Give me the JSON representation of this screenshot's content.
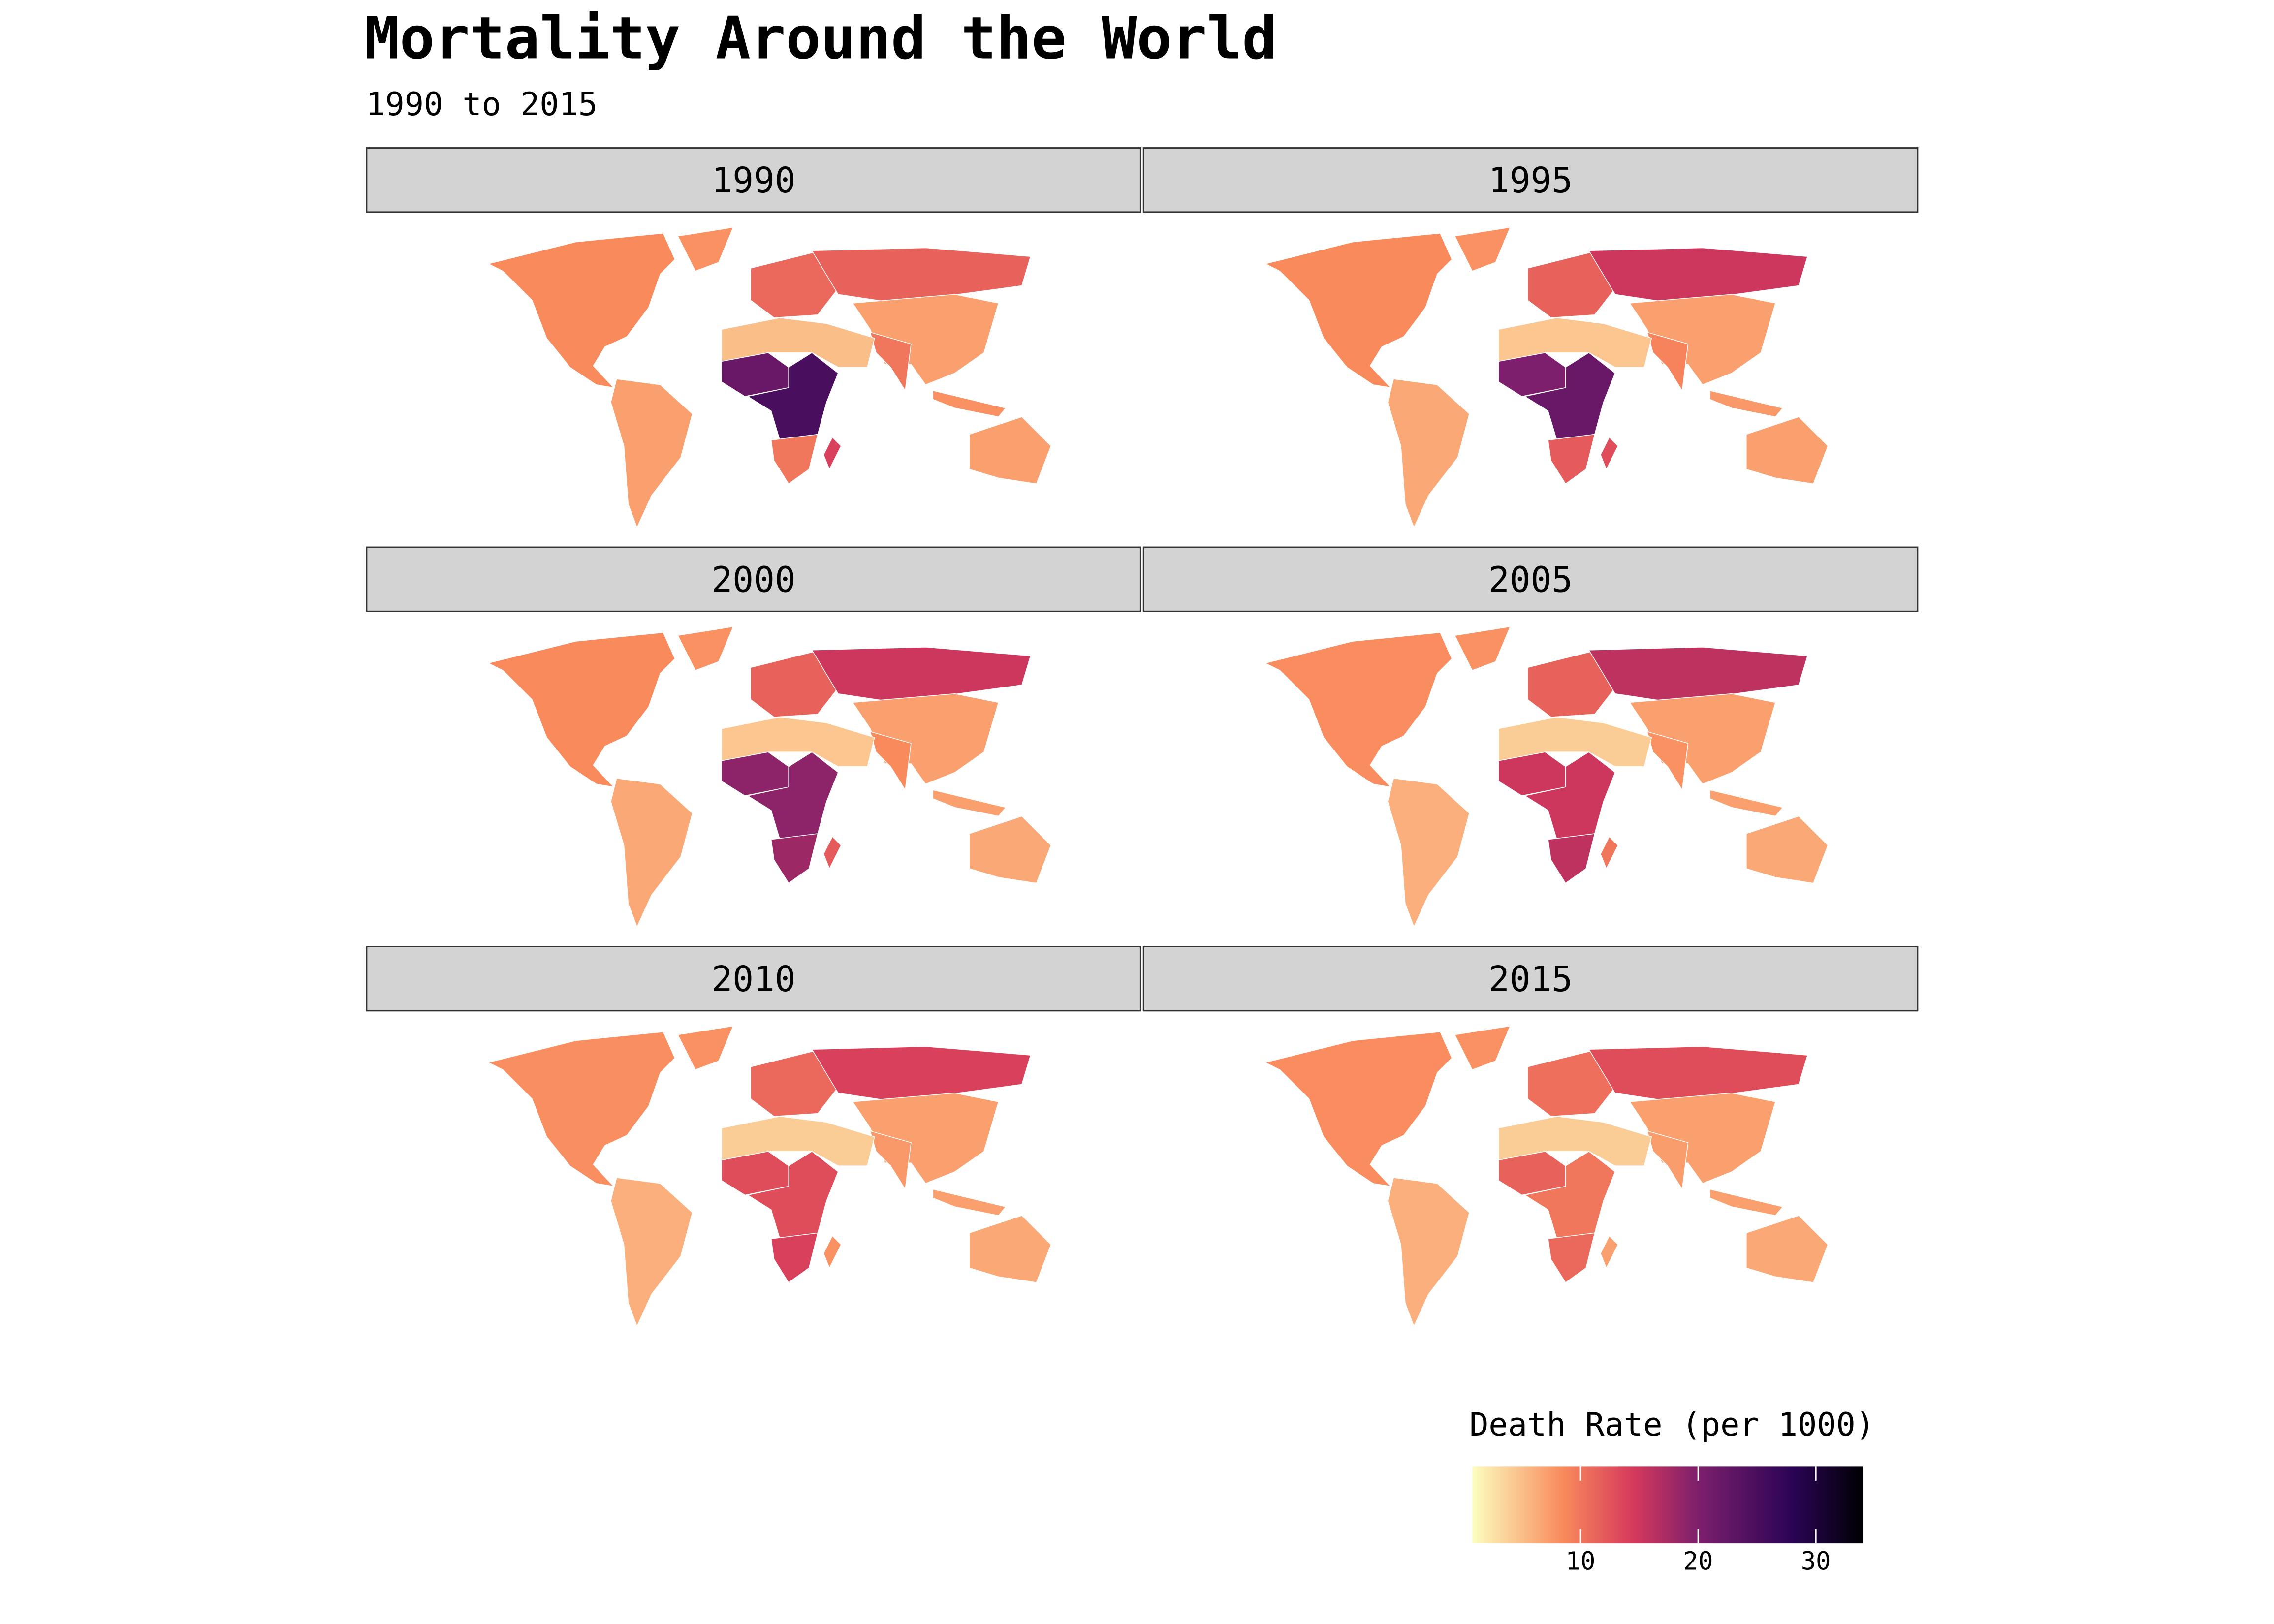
{
  "title": "Mortality Around the World",
  "subtitle": "1990 to 2015",
  "chart_data": {
    "type": "choropleth-map",
    "title": "Mortality Around the World",
    "subtitle": "1990 to 2015",
    "facets": [
      "1990",
      "1995",
      "2000",
      "2005",
      "2010",
      "2015"
    ],
    "regions": [
      "north_america",
      "greenland",
      "south_america",
      "europe",
      "russia",
      "east_asia",
      "south_asia",
      "mena",
      "west_africa",
      "central_east_africa",
      "southern_africa",
      "madagascar",
      "australia",
      "southeast_asia"
    ],
    "values": {
      "1990": {
        "north_america": 8.5,
        "greenland": 8,
        "south_america": 7,
        "europe": 11,
        "russia": 11.5,
        "east_asia": 7,
        "south_asia": 10,
        "mena": 5,
        "west_africa": 22,
        "central_east_africa": 25,
        "southern_africa": 10,
        "madagascar": 14,
        "australia": 7,
        "southeast_asia": 8
      },
      "1995": {
        "north_america": 8.5,
        "greenland": 8,
        "south_america": 6.5,
        "europe": 11.5,
        "russia": 15,
        "east_asia": 7,
        "south_asia": 9,
        "mena": 4.5,
        "west_africa": 20,
        "central_east_africa": 22,
        "southern_africa": 12,
        "madagascar": 13,
        "australia": 7,
        "southeast_asia": 7.5
      },
      "2000": {
        "north_america": 8.5,
        "greenland": 8,
        "south_america": 6.5,
        "europe": 11.5,
        "russia": 15,
        "east_asia": 7,
        "south_asia": 8.5,
        "mena": 4.5,
        "west_africa": 19,
        "central_east_africa": 19,
        "southern_africa": 18,
        "madagascar": 12,
        "australia": 6.5,
        "southeast_asia": 7
      },
      "2005": {
        "north_america": 8.3,
        "greenland": 8,
        "south_america": 6,
        "europe": 11.5,
        "russia": 16,
        "east_asia": 7,
        "south_asia": 8,
        "mena": 4,
        "west_africa": 15,
        "central_east_africa": 15,
        "southern_africa": 16,
        "madagascar": 10,
        "australia": 6.5,
        "southeast_asia": 7
      },
      "2010": {
        "north_america": 8.2,
        "greenland": 8,
        "south_america": 6,
        "europe": 11,
        "russia": 14,
        "east_asia": 7,
        "south_asia": 7.5,
        "mena": 4,
        "west_africa": 13,
        "central_east_africa": 13,
        "southern_africa": 14,
        "madagascar": 8,
        "australia": 6.5,
        "southeast_asia": 7
      },
      "2015": {
        "north_america": 8.3,
        "greenland": 8,
        "south_america": 6,
        "europe": 10.5,
        "russia": 13,
        "east_asia": 7,
        "south_asia": 7.2,
        "mena": 4,
        "west_africa": 11.5,
        "central_east_africa": 10,
        "southern_africa": 11,
        "madagascar": 7,
        "australia": 6.5,
        "southeast_asia": 7
      }
    },
    "legend": {
      "title": "Death Rate (per 1000)",
      "ticks": [
        10,
        20,
        30
      ],
      "range": [
        0.8,
        34
      ],
      "placement": "bottom-right"
    },
    "colorscale": {
      "stops": [
        [
          0.8,
          "#fcfdbf"
        ],
        [
          8.5,
          "#f98a5c"
        ],
        [
          14.5,
          "#d6395b"
        ],
        [
          20,
          "#7d1f6c"
        ],
        [
          28,
          "#2b0456"
        ],
        [
          34,
          "#000004"
        ]
      ]
    }
  }
}
